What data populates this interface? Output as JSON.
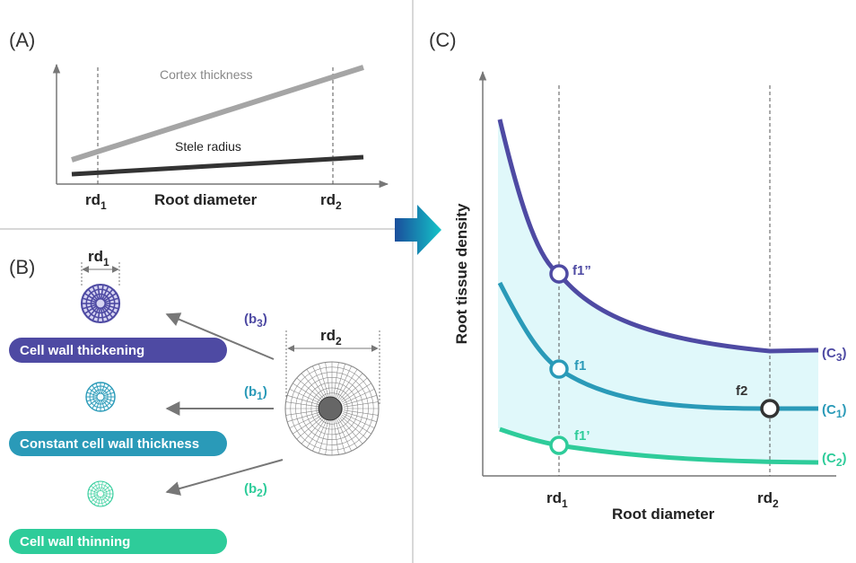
{
  "panel_a": {
    "label": "(A)",
    "cortex": "Cortex thickness",
    "stele": "Stele radius",
    "x_axis": "Root diameter",
    "rd1": {
      "pre": "rd",
      "sub": "1"
    },
    "rd2": {
      "pre": "rd",
      "sub": "2"
    }
  },
  "panel_b": {
    "label": "(B)",
    "rd1": {
      "pre": "rd",
      "sub": "1"
    },
    "rd2": {
      "pre": "rd",
      "sub": "2"
    },
    "pathways": [
      {
        "tag": {
          "pre": "(b",
          "sub": "3",
          "post": ")"
        },
        "bar": "Cell wall thickening"
      },
      {
        "tag": {
          "pre": "(b",
          "sub": "1",
          "post": ")"
        },
        "bar": "Constant cell wall thickness"
      },
      {
        "tag": {
          "pre": "(b",
          "sub": "2",
          "post": ")"
        },
        "bar": "Cell wall thinning"
      }
    ]
  },
  "panel_c": {
    "label": "(C)",
    "y_axis": "Root tissue density",
    "x_axis": "Root diameter",
    "rd1": {
      "pre": "rd",
      "sub": "1"
    },
    "rd2": {
      "pre": "rd",
      "sub": "2"
    },
    "points": [
      "f1”",
      "f1",
      "f1’",
      "f2"
    ],
    "curves": [
      {
        "pre": "(C",
        "sub": "3",
        "post": ")"
      },
      {
        "pre": "(C",
        "sub": "1",
        "post": ")"
      },
      {
        "pre": "(C",
        "sub": "2",
        "post": ")"
      }
    ]
  }
}
